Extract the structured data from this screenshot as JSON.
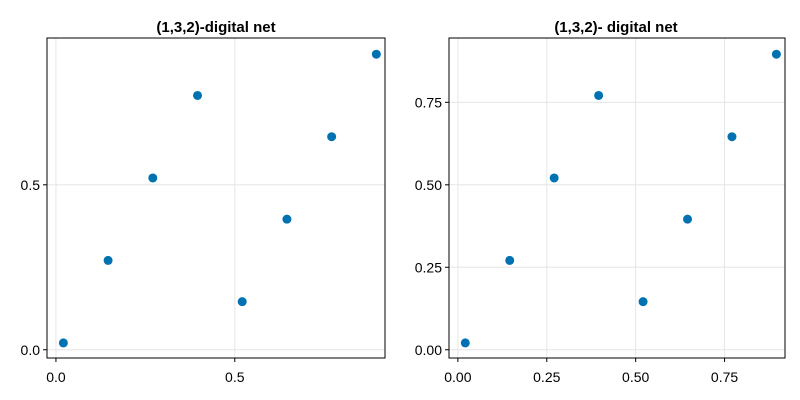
{
  "chart_data": [
    {
      "type": "scatter",
      "title": "(1,3,2)-digital net",
      "xlabel": "",
      "ylabel": "",
      "xlim": [
        -0.025,
        0.92
      ],
      "ylim": [
        -0.025,
        0.945
      ],
      "x_ticks": [
        "0.0",
        "0.5"
      ],
      "x_tick_values": [
        0.0,
        0.5
      ],
      "y_ticks": [
        "0.0",
        "0.5"
      ],
      "y_tick_values": [
        0.0,
        0.5
      ],
      "grid": true,
      "marker_color": "#0072b2",
      "series": [
        {
          "x": [
            0.0208,
            0.1458,
            0.2708,
            0.3958,
            0.5208,
            0.6458,
            0.7708,
            0.8958
          ],
          "y": [
            0.0208,
            0.2708,
            0.5208,
            0.7708,
            0.1458,
            0.3958,
            0.6458,
            0.8958
          ]
        }
      ]
    },
    {
      "type": "scatter",
      "title": "(1,3,2)- digital net",
      "xlabel": "",
      "ylabel": "",
      "xlim": [
        -0.025,
        0.92
      ],
      "ylim": [
        -0.025,
        0.945
      ],
      "x_ticks": [
        "0.00",
        "0.25",
        "0.50",
        "0.75"
      ],
      "x_tick_values": [
        0.0,
        0.25,
        0.5,
        0.75
      ],
      "y_ticks": [
        "0.00",
        "0.25",
        "0.50",
        "0.75"
      ],
      "y_tick_values": [
        0.0,
        0.25,
        0.5,
        0.75
      ],
      "grid": true,
      "marker_color": "#0072b2",
      "series": [
        {
          "x": [
            0.0208,
            0.1458,
            0.2708,
            0.3958,
            0.5208,
            0.6458,
            0.7708,
            0.8958
          ],
          "y": [
            0.0208,
            0.2708,
            0.5208,
            0.7708,
            0.1458,
            0.3958,
            0.6458,
            0.8958
          ]
        }
      ]
    }
  ]
}
